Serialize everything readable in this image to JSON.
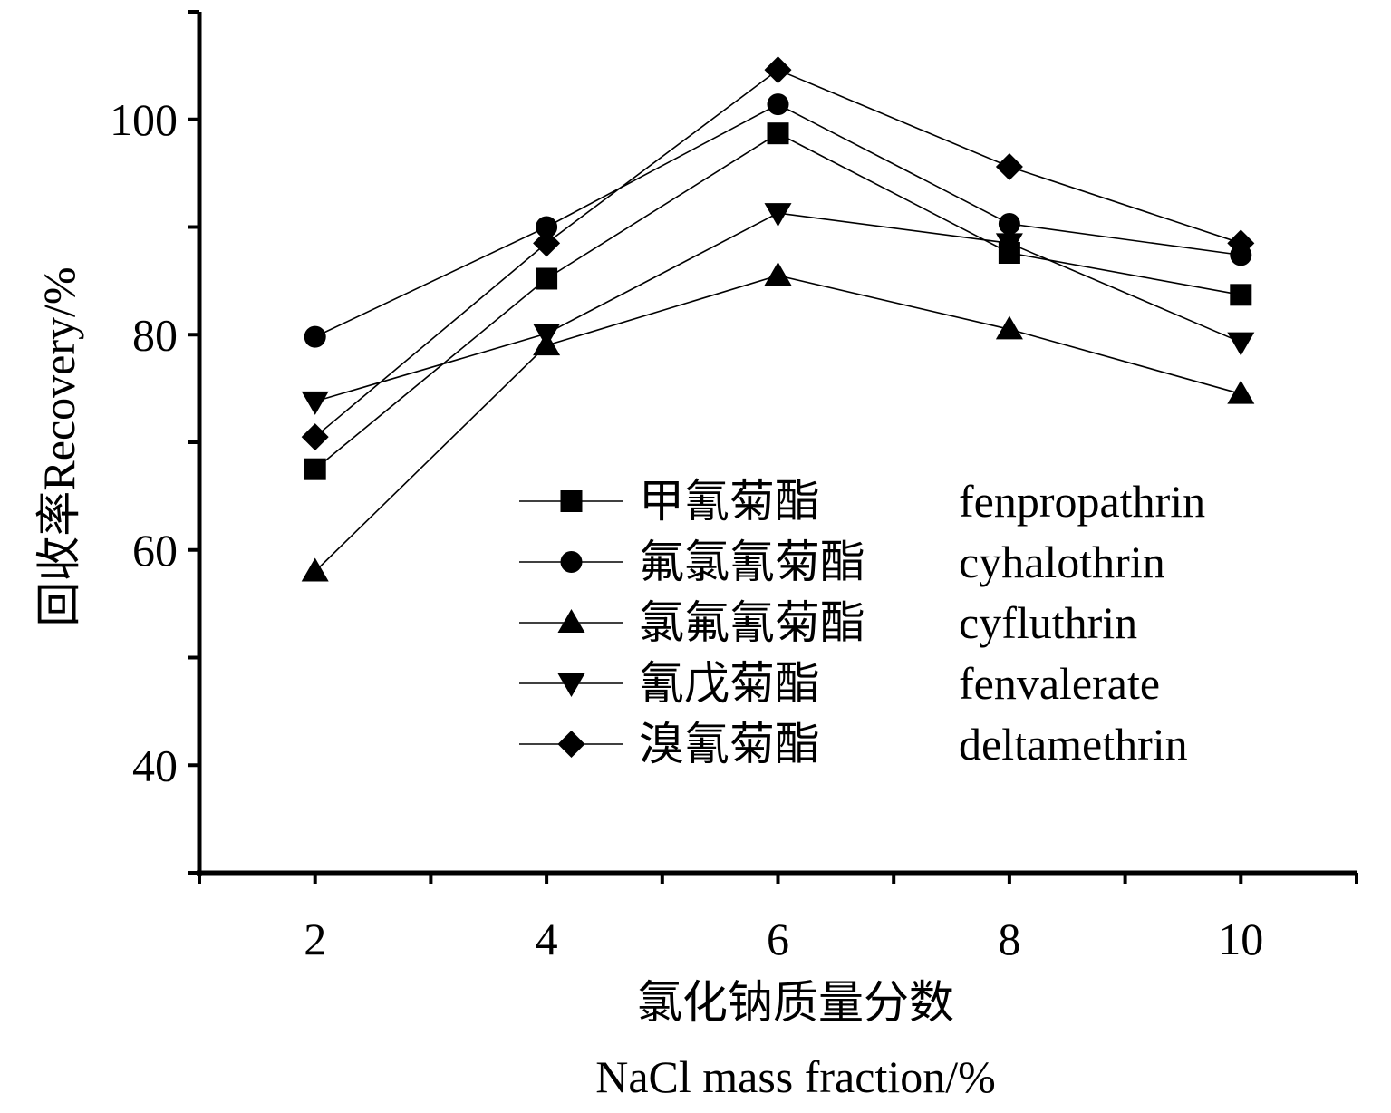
{
  "chart_data": {
    "type": "line",
    "title": "",
    "xlabel_cn": "氯化钠质量分数",
    "xlabel_en": "NaCl mass fraction/%",
    "ylabel": "回收率Recovery/%",
    "x": [
      2,
      4,
      6,
      8,
      10
    ],
    "xlim": [
      1,
      11
    ],
    "ylim": [
      30,
      110
    ],
    "xticks": [
      2,
      4,
      6,
      8,
      10
    ],
    "yticks": [
      40,
      60,
      80,
      100
    ],
    "grid": false,
    "legend_position": "center-right",
    "series": [
      {
        "name_cn": "甲氰菊酯",
        "name": "fenpropathrin",
        "marker": "square",
        "values": [
          67.5,
          85.2,
          98.7,
          87.6,
          83.7
        ]
      },
      {
        "name_cn": "氟氯氰菊酯",
        "name": "cyhalothrin",
        "marker": "circle",
        "values": [
          79.8,
          90.0,
          101.4,
          90.3,
          87.4
        ]
      },
      {
        "name_cn": "氯氟氰菊酯",
        "name": "cyfluthrin",
        "marker": "triangle-up",
        "values": [
          58.0,
          79.0,
          85.5,
          80.5,
          74.5
        ]
      },
      {
        "name_cn": "氰戊菊酯",
        "name": "fenvalerate",
        "marker": "triangle-down",
        "values": [
          73.8,
          80.1,
          91.3,
          88.5,
          79.3
        ]
      },
      {
        "name_cn": "溴氰菊酯",
        "name": "deltamethrin",
        "marker": "diamond",
        "values": [
          70.5,
          88.5,
          104.6,
          95.6,
          88.5
        ]
      }
    ]
  }
}
